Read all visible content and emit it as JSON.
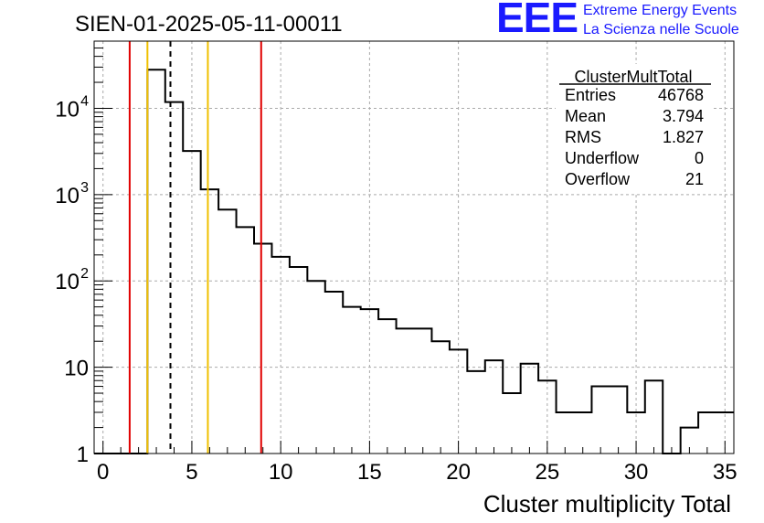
{
  "chart_data": {
    "type": "histogram",
    "title": "SIEN-01-2025-05-11-00011",
    "xlabel": "Cluster multiplicity Total",
    "ylabel": "",
    "xlim": [
      -0.5,
      35.5
    ],
    "ylim": [
      1,
      60000
    ],
    "yscale": "log",
    "grid": true,
    "x_ticks": [
      "0",
      "5",
      "10",
      "15",
      "20",
      "25",
      "30",
      "35"
    ],
    "y_ticks": [
      {
        "value": 1,
        "base": "1",
        "exp": ""
      },
      {
        "value": 10,
        "base": "10",
        "exp": ""
      },
      {
        "value": 100,
        "base": "10",
        "exp": "2"
      },
      {
        "value": 1000,
        "base": "10",
        "exp": "3"
      },
      {
        "value": 10000,
        "base": "10",
        "exp": "4"
      }
    ],
    "bin_width": 1,
    "bins": [
      {
        "x": 0,
        "count": 0
      },
      {
        "x": 1,
        "count": 0
      },
      {
        "x": 2,
        "count": 0
      },
      {
        "x": 3,
        "count": 28000
      },
      {
        "x": 4,
        "count": 11800
      },
      {
        "x": 5,
        "count": 3200
      },
      {
        "x": 6,
        "count": 1150
      },
      {
        "x": 7,
        "count": 670
      },
      {
        "x": 8,
        "count": 420
      },
      {
        "x": 9,
        "count": 270
      },
      {
        "x": 10,
        "count": 190
      },
      {
        "x": 11,
        "count": 145
      },
      {
        "x": 12,
        "count": 100
      },
      {
        "x": 13,
        "count": 75
      },
      {
        "x": 14,
        "count": 50
      },
      {
        "x": 15,
        "count": 47
      },
      {
        "x": 16,
        "count": 36
      },
      {
        "x": 17,
        "count": 28
      },
      {
        "x": 18,
        "count": 28
      },
      {
        "x": 19,
        "count": 20
      },
      {
        "x": 20,
        "count": 16
      },
      {
        "x": 21,
        "count": 9
      },
      {
        "x": 22,
        "count": 12
      },
      {
        "x": 23,
        "count": 5
      },
      {
        "x": 24,
        "count": 11
      },
      {
        "x": 25,
        "count": 7
      },
      {
        "x": 26,
        "count": 3
      },
      {
        "x": 27,
        "count": 3
      },
      {
        "x": 28,
        "count": 6
      },
      {
        "x": 29,
        "count": 6
      },
      {
        "x": 30,
        "count": 3
      },
      {
        "x": 31,
        "count": 7
      },
      {
        "x": 32,
        "count": 0
      },
      {
        "x": 33,
        "count": 2
      },
      {
        "x": 34,
        "count": 3
      },
      {
        "x": 35,
        "count": 3
      }
    ],
    "vertical_lines": [
      {
        "x": 1.5,
        "color": "#e00000",
        "style": "solid"
      },
      {
        "x": 2.5,
        "color": "#f0c000",
        "style": "solid"
      },
      {
        "x": 3.794,
        "color": "#000000",
        "style": "dashed"
      },
      {
        "x": 5.9,
        "color": "#f0c000",
        "style": "solid"
      },
      {
        "x": 8.9,
        "color": "#e00000",
        "style": "solid"
      }
    ],
    "stats_box": {
      "title": "ClusterMultTotal",
      "rows": [
        {
          "label": "Entries",
          "value": "46768"
        },
        {
          "label": "Mean",
          "value": "3.794"
        },
        {
          "label": "RMS",
          "value": "1.827"
        },
        {
          "label": "Underflow",
          "value": "0"
        },
        {
          "label": "Overflow",
          "value": "21"
        }
      ]
    }
  },
  "logo": {
    "big": "EEE",
    "line1": "Extreme Energy Events",
    "line2": "La Scienza nelle Scuole"
  }
}
